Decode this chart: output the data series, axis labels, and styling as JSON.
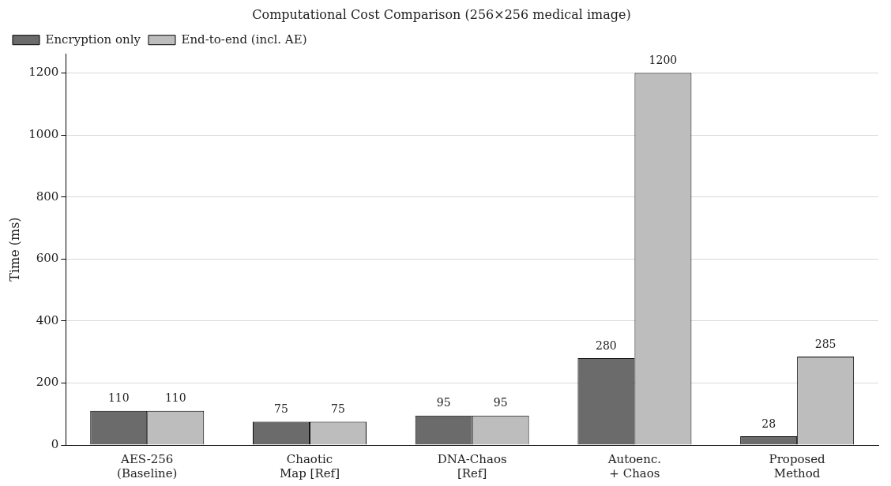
{
  "chart_data": {
    "type": "bar",
    "title": "Computational Cost Comparison (256×256 medical image)",
    "ylabel": "Time (ms)",
    "categories": [
      "AES-256\n(Baseline)",
      "Chaotic\nMap [Ref]",
      "DNA-Chaos\n[Ref]",
      "Autoenc.\n+ Chaos",
      "Proposed\nMethod"
    ],
    "series": [
      {
        "name": "Encryption only",
        "color": "#6b6b6b",
        "values": [
          110,
          75,
          95,
          280,
          28
        ]
      },
      {
        "name": "End-to-end (incl. AE)",
        "color": "#bdbdbd",
        "values": [
          110,
          75,
          95,
          1200,
          285
        ]
      }
    ],
    "ylim": [
      0,
      1262
    ],
    "yticks": [
      0,
      200,
      400,
      600,
      800,
      1000,
      1200
    ],
    "grid": "y",
    "legend": "top left",
    "data_labels": true
  }
}
